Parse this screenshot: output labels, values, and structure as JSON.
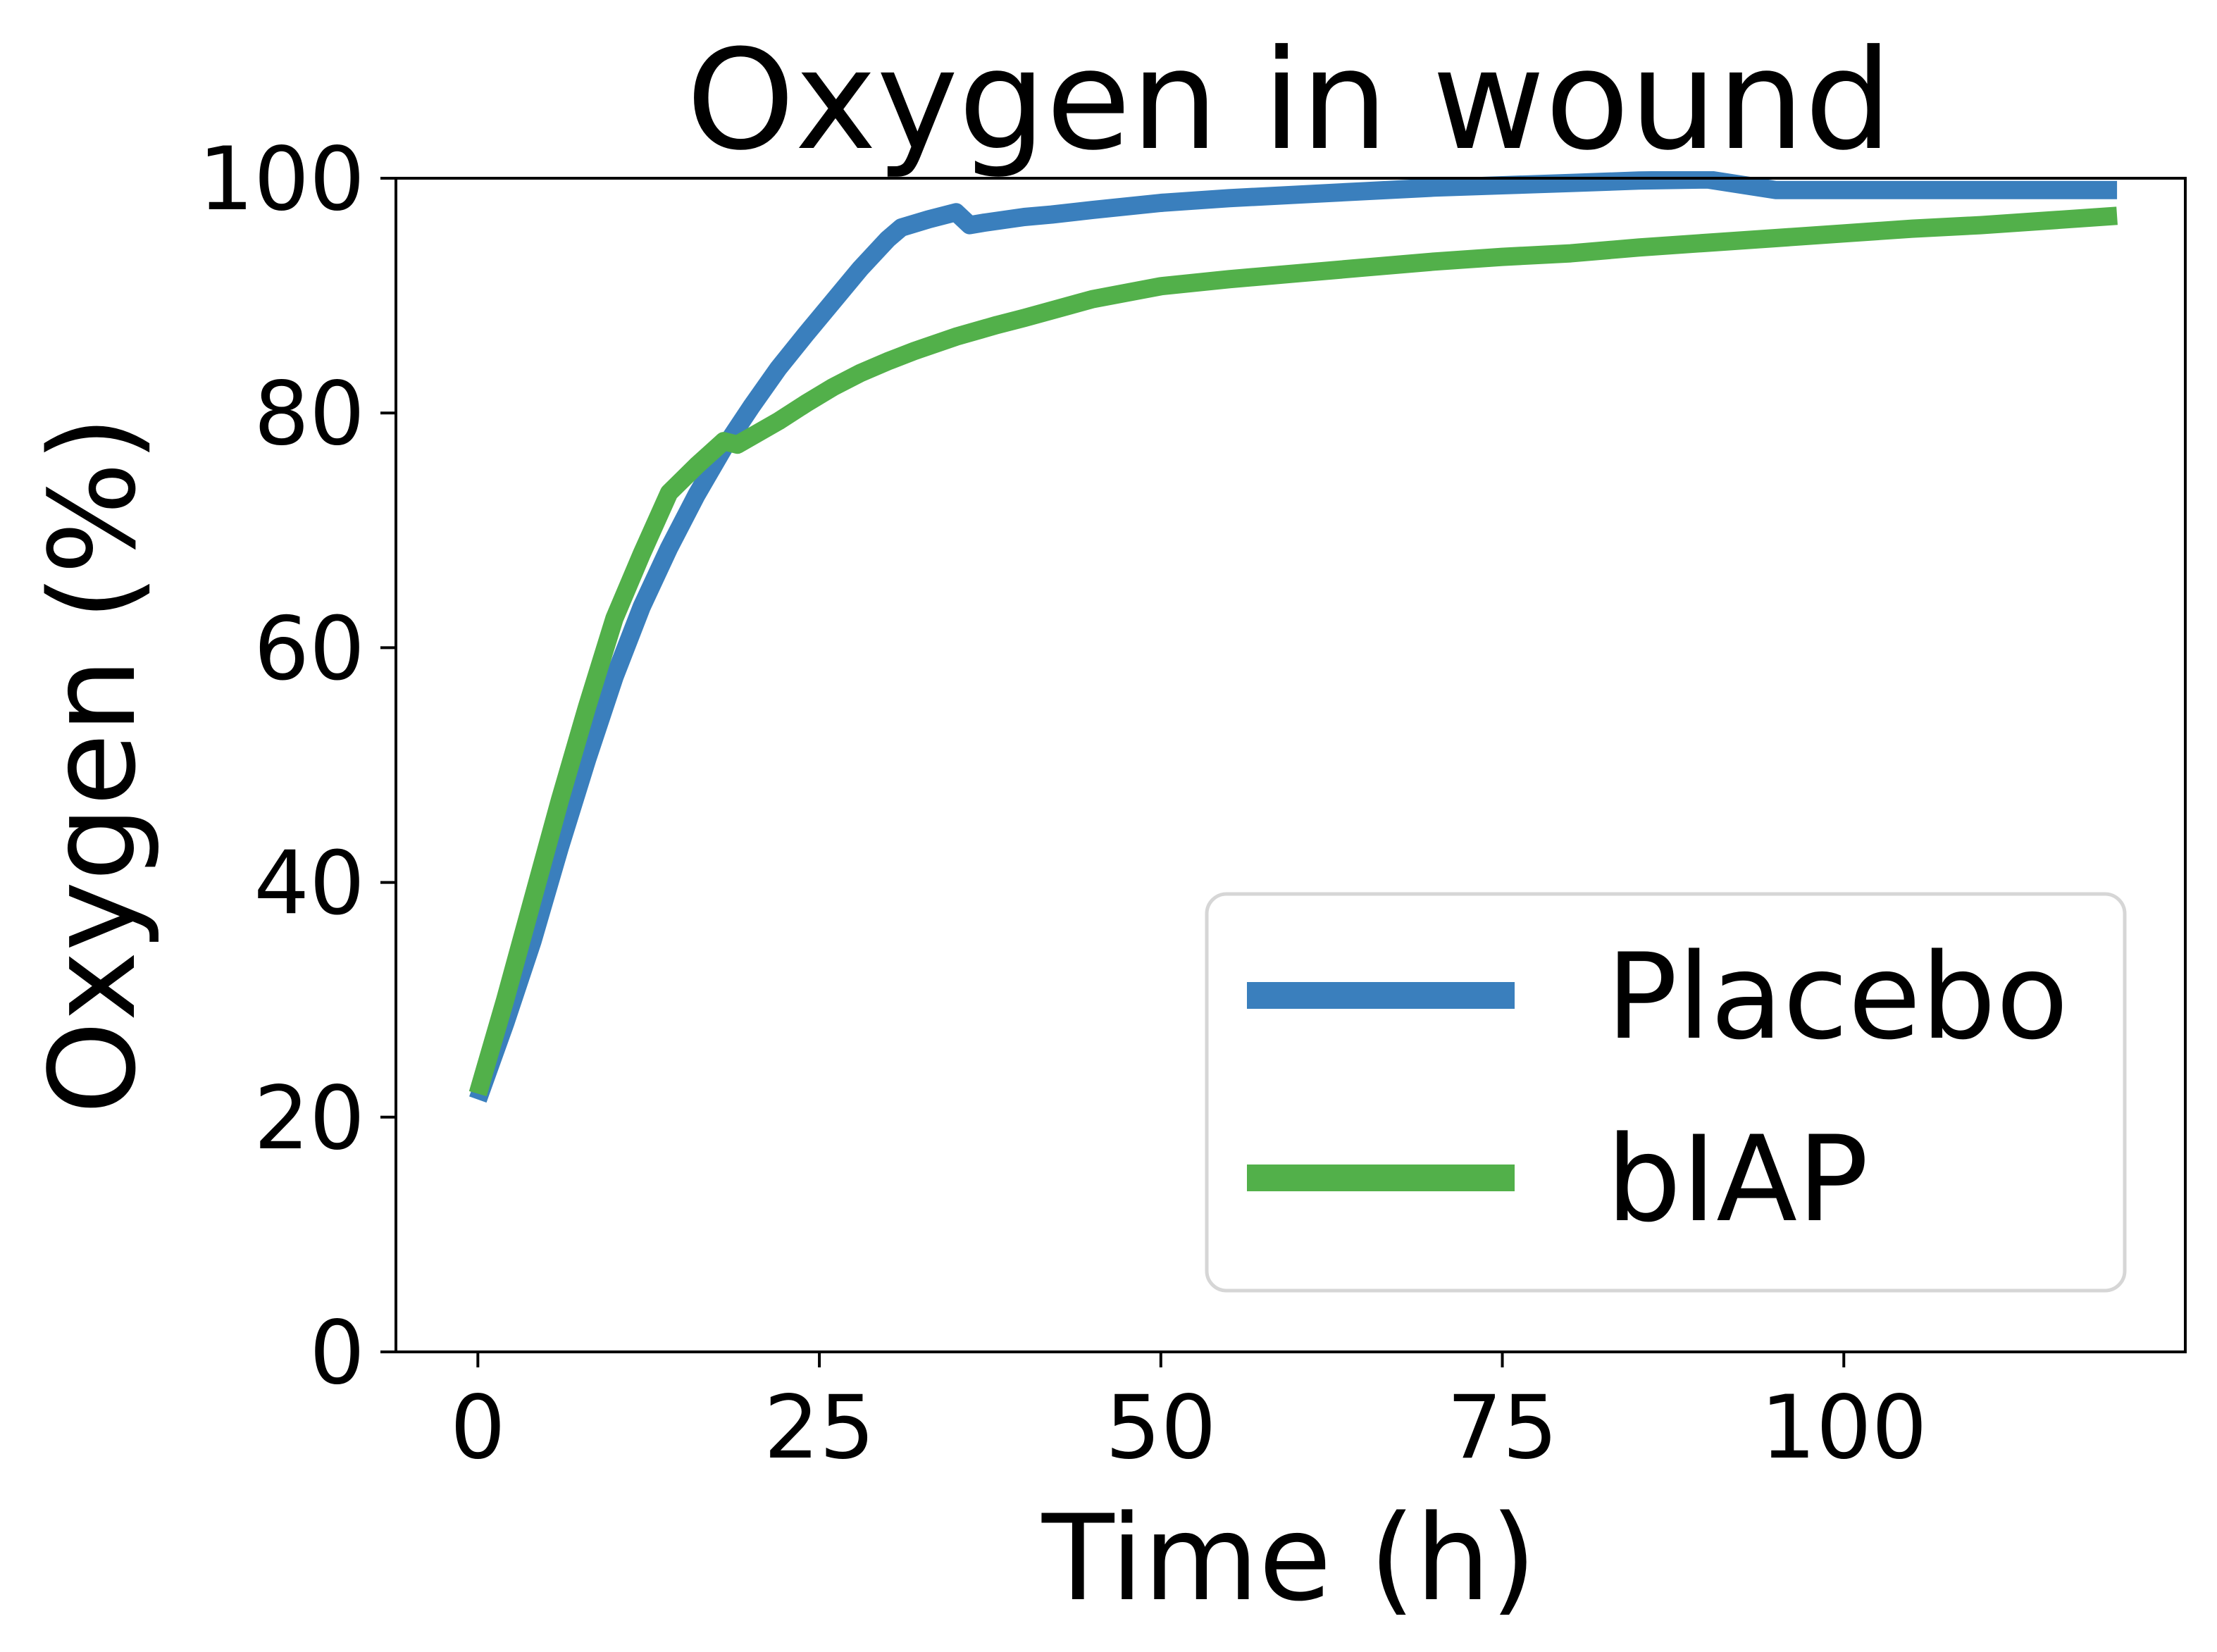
{
  "chart_data": {
    "type": "line",
    "title": "Oxygen in wound",
    "xlabel": "Time (h)",
    "ylabel": "Oxygen (%)",
    "xlim": [
      -6,
      125
    ],
    "ylim": [
      0,
      100
    ],
    "xticks": [
      0,
      25,
      50,
      75,
      100
    ],
    "yticks": [
      0,
      20,
      40,
      60,
      80,
      100
    ],
    "xtick_labels": [
      "0",
      "25",
      "50",
      "75",
      "100"
    ],
    "ytick_labels": [
      "0",
      "20",
      "40",
      "60",
      "80",
      "100"
    ],
    "grid": false,
    "legend_position": "lower-right",
    "series": [
      {
        "name": "Placebo",
        "color": "#3a7fbd",
        "x": [
          0,
          2,
          4,
          6,
          8,
          10,
          12,
          14,
          16,
          18,
          20,
          22,
          24,
          26,
          28,
          30,
          31,
          33,
          35,
          36,
          37,
          40,
          42,
          45,
          50,
          55,
          60,
          65,
          70,
          75,
          80,
          85,
          90,
          95,
          100,
          105,
          110,
          115,
          120
        ],
        "y": [
          21.5,
          28,
          35,
          43,
          50.5,
          57.5,
          63.5,
          68.5,
          73,
          77,
          80.5,
          83.8,
          86.7,
          89.5,
          92.3,
          94.8,
          95.8,
          96.5,
          97.1,
          96,
          96.2,
          96.7,
          96.9,
          97.3,
          97.9,
          98.3,
          98.6,
          98.9,
          99.2,
          99.4,
          99.6,
          99.8,
          99.9,
          100,
          100,
          100,
          100,
          100,
          100
        ],
        "y_fraction_of_axis": true
      },
      {
        "name": "bIAP",
        "color": "#52b04a",
        "x": [
          0,
          2,
          4,
          6,
          8,
          10,
          12,
          14,
          16,
          18,
          19,
          22,
          24,
          26,
          28,
          30,
          32,
          35,
          38,
          40,
          45,
          50,
          55,
          60,
          65,
          70,
          75,
          80,
          85,
          90,
          95,
          100,
          105,
          110,
          115,
          120
        ],
        "y": [
          22,
          30,
          38.5,
          47,
          55,
          62.5,
          68,
          73.2,
          75.5,
          77.6,
          77.3,
          79.3,
          80.8,
          82.2,
          83.4,
          84.4,
          85.3,
          86.5,
          87.5,
          88.1,
          89.7,
          90.8,
          91.4,
          91.9,
          92.4,
          92.9,
          93.3,
          93.6,
          94.1,
          94.5,
          94.9,
          95.3,
          95.7,
          96,
          96.4,
          96.8
        ]
      }
    ]
  }
}
